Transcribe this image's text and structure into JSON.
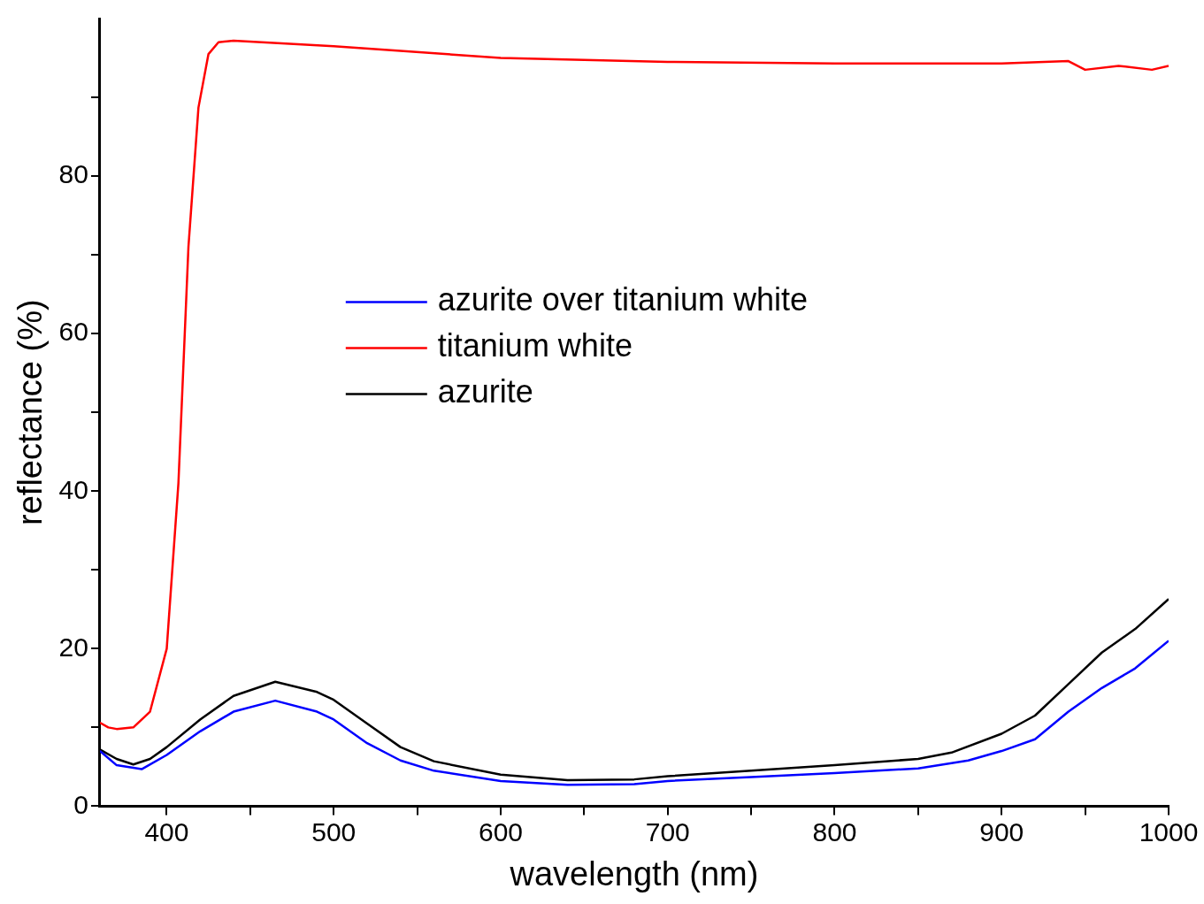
{
  "chart_data": {
    "type": "line",
    "xlabel": "wavelength (nm)",
    "ylabel": "reflectance (%)",
    "xlim": [
      360,
      1000
    ],
    "ylim": [
      0,
      100
    ],
    "xticks": [
      400,
      {
        "value": 450,
        "label": null
      },
      500,
      {
        "value": 550,
        "label": null
      },
      600,
      {
        "value": 650,
        "label": null
      },
      700,
      {
        "value": 750,
        "label": null
      },
      800,
      {
        "value": 850,
        "label": null
      },
      900,
      {
        "value": 950,
        "label": null
      },
      1000
    ],
    "yticks": [
      0,
      {
        "value": 10,
        "label": null
      },
      20,
      {
        "value": 30,
        "label": null
      },
      40,
      {
        "value": 50,
        "label": null
      },
      60,
      {
        "value": 70,
        "label": null
      },
      80,
      {
        "value": 90,
        "label": null
      }
    ],
    "grid": false,
    "legend": "top",
    "marker": "none",
    "line_style": "solid",
    "series": [
      {
        "name": "azurite over titanium white",
        "color": "#0000ff",
        "x": [
          360,
          370,
          385,
          400,
          420,
          440,
          465,
          490,
          500,
          520,
          540,
          560,
          600,
          640,
          680,
          700,
          750,
          800,
          850,
          880,
          900,
          920,
          940,
          960,
          980,
          1000
        ],
        "values": [
          7,
          5.2,
          4.7,
          6.5,
          9.5,
          12,
          13.4,
          12,
          11,
          8,
          5.8,
          4.5,
          3.2,
          2.7,
          2.8,
          3.2,
          3.7,
          4.2,
          4.8,
          5.8,
          7,
          8.5,
          12,
          15,
          17.5,
          21
        ]
      },
      {
        "name": "titanium white",
        "color": "#ff0000",
        "x": [
          360,
          365,
          370,
          380,
          390,
          400,
          407,
          413,
          419,
          425,
          431,
          440,
          500,
          600,
          700,
          800,
          900,
          940,
          950,
          970,
          990,
          1000
        ],
        "values": [
          10.6,
          10,
          9.8,
          10,
          12,
          20,
          41,
          71,
          88.7,
          95.5,
          97,
          97.2,
          96.5,
          95,
          94.5,
          94.3,
          94.3,
          94.6,
          93.5,
          94,
          93.5,
          94
        ]
      },
      {
        "name": "azurite",
        "color": "#000000",
        "x": [
          360,
          370,
          380,
          390,
          400,
          420,
          440,
          465,
          490,
          500,
          520,
          540,
          560,
          600,
          640,
          680,
          700,
          750,
          800,
          850,
          870,
          900,
          920,
          940,
          960,
          980,
          1000
        ],
        "values": [
          7.2,
          6,
          5.3,
          6,
          7.5,
          11,
          14,
          15.8,
          14.5,
          13.5,
          10.5,
          7.5,
          5.7,
          4,
          3.3,
          3.4,
          3.8,
          4.5,
          5.2,
          6,
          6.8,
          9.2,
          11.5,
          15.5,
          19.5,
          22.5,
          26.3
        ]
      }
    ]
  }
}
